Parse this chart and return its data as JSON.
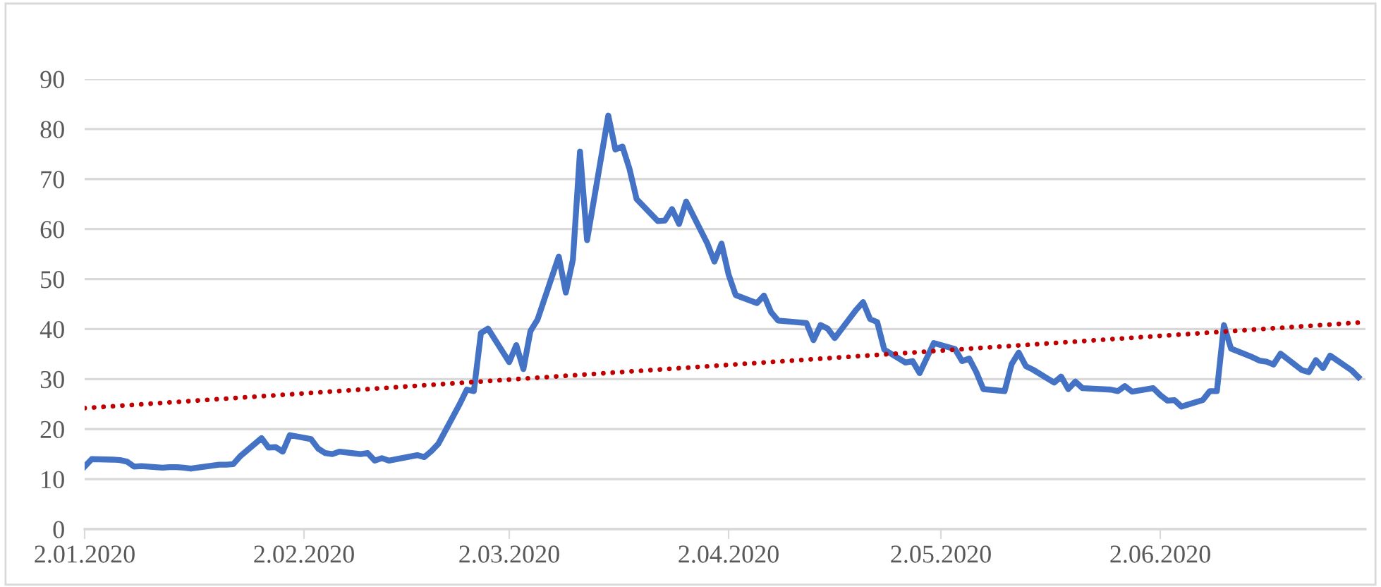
{
  "chart_data": {
    "type": "line",
    "x": [
      "2020-01-02",
      "2020-01-03",
      "2020-01-06",
      "2020-01-07",
      "2020-01-08",
      "2020-01-09",
      "2020-01-10",
      "2020-01-13",
      "2020-01-14",
      "2020-01-15",
      "2020-01-16",
      "2020-01-17",
      "2020-01-21",
      "2020-01-22",
      "2020-01-23",
      "2020-01-24",
      "2020-01-27",
      "2020-01-28",
      "2020-01-29",
      "2020-01-30",
      "2020-01-31",
      "2020-02-03",
      "2020-02-04",
      "2020-02-05",
      "2020-02-06",
      "2020-02-07",
      "2020-02-10",
      "2020-02-11",
      "2020-02-12",
      "2020-02-13",
      "2020-02-14",
      "2020-02-18",
      "2020-02-19",
      "2020-02-20",
      "2020-02-21",
      "2020-02-24",
      "2020-02-25",
      "2020-02-26",
      "2020-02-27",
      "2020-02-28",
      "2020-03-02",
      "2020-03-03",
      "2020-03-04",
      "2020-03-05",
      "2020-03-06",
      "2020-03-09",
      "2020-03-10",
      "2020-03-11",
      "2020-03-12",
      "2020-03-13",
      "2020-03-16",
      "2020-03-17",
      "2020-03-18",
      "2020-03-19",
      "2020-03-20",
      "2020-03-23",
      "2020-03-24",
      "2020-03-25",
      "2020-03-26",
      "2020-03-27",
      "2020-03-30",
      "2020-03-31",
      "2020-04-01",
      "2020-04-02",
      "2020-04-03",
      "2020-04-06",
      "2020-04-07",
      "2020-04-08",
      "2020-04-09",
      "2020-04-13",
      "2020-04-14",
      "2020-04-15",
      "2020-04-16",
      "2020-04-17",
      "2020-04-20",
      "2020-04-21",
      "2020-04-22",
      "2020-04-23",
      "2020-04-24",
      "2020-04-27",
      "2020-04-28",
      "2020-04-29",
      "2020-04-30",
      "2020-05-01",
      "2020-05-04",
      "2020-05-05",
      "2020-05-06",
      "2020-05-07",
      "2020-05-08",
      "2020-05-11",
      "2020-05-12",
      "2020-05-13",
      "2020-05-14",
      "2020-05-15",
      "2020-05-18",
      "2020-05-19",
      "2020-05-20",
      "2020-05-21",
      "2020-05-22",
      "2020-05-26",
      "2020-05-27",
      "2020-05-28",
      "2020-05-29",
      "2020-06-01",
      "2020-06-02",
      "2020-06-03",
      "2020-06-04",
      "2020-06-05",
      "2020-06-08",
      "2020-06-09",
      "2020-06-10",
      "2020-06-11",
      "2020-06-12",
      "2020-06-15",
      "2020-06-16",
      "2020-06-17",
      "2020-06-18",
      "2020-06-19",
      "2020-06-22",
      "2020-06-23",
      "2020-06-24",
      "2020-06-25",
      "2020-06-26",
      "2020-06-29",
      "2020-06-30"
    ],
    "series": [
      {
        "color": "#4472c4",
        "line_style": "solid",
        "values": [
          12.5,
          14.0,
          13.9,
          13.8,
          13.5,
          12.5,
          12.6,
          12.3,
          12.4,
          12.4,
          12.3,
          12.1,
          12.9,
          12.9,
          13.0,
          14.6,
          18.2,
          16.3,
          16.4,
          15.5,
          18.8,
          18.0,
          16.1,
          15.2,
          15.0,
          15.5,
          15.0,
          15.2,
          13.7,
          14.2,
          13.7,
          14.8,
          14.4,
          15.6,
          17.1,
          25.0,
          27.9,
          27.6,
          39.2,
          40.1,
          33.4,
          36.8,
          32.0,
          39.6,
          41.9,
          54.5,
          47.3,
          53.9,
          75.5,
          57.8,
          82.7,
          75.9,
          76.5,
          72.0,
          66.0,
          61.6,
          61.7,
          64.0,
          61.0,
          65.5,
          57.1,
          53.5,
          57.1,
          50.9,
          46.8,
          45.2,
          46.7,
          43.4,
          41.7,
          41.2,
          37.8,
          40.8,
          40.1,
          38.2,
          43.8,
          45.4,
          42.0,
          41.4,
          35.9,
          33.3,
          33.6,
          31.2,
          34.2,
          37.2,
          36.0,
          33.6,
          34.1,
          31.4,
          28.0,
          27.6,
          33.0,
          35.3,
          32.6,
          31.9,
          29.3,
          30.5,
          28.0,
          29.5,
          28.2,
          27.9,
          27.6,
          28.6,
          27.5,
          28.2,
          26.8,
          25.7,
          25.8,
          24.5,
          25.8,
          27.6,
          27.6,
          40.8,
          36.1,
          34.4,
          33.7,
          33.5,
          32.9,
          35.1,
          31.8,
          31.4,
          33.8,
          32.2,
          34.7,
          31.8,
          30.4
        ]
      },
      {
        "type": "line",
        "color": "#c00000",
        "line_style": "dotted",
        "x": [
          "2020-01-02",
          "2020-06-30"
        ],
        "values": [
          24.2,
          41.3
        ]
      }
    ],
    "xlim": [
      "2020-01-02",
      "2020-07-01"
    ],
    "xticks": [
      {
        "value": "2020-01-02",
        "label": "2.01.2020"
      },
      {
        "value": "2020-02-02",
        "label": "2.02.2020"
      },
      {
        "value": "2020-03-02",
        "label": "2.03.2020"
      },
      {
        "value": "2020-04-02",
        "label": "2.04.2020"
      },
      {
        "value": "2020-05-02",
        "label": "2.05.2020"
      },
      {
        "value": "2020-06-02",
        "label": "2.06.2020"
      }
    ],
    "ylim": [
      0,
      90
    ],
    "yticks": [
      0,
      10,
      20,
      30,
      40,
      50,
      60,
      70,
      80,
      90
    ],
    "grid": "y",
    "legend": false,
    "marker": "none"
  }
}
